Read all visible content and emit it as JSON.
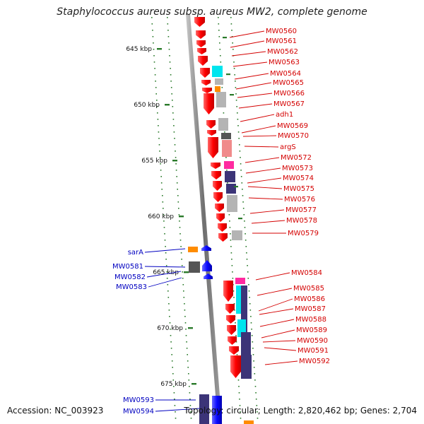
{
  "title": "Staphylococcus aureus subsp. aureus MW2, complete genome",
  "accession": "Accession: NC_003923",
  "topology": "Topology: circular; Length: 2,820,462 bp; Genes: 2,704",
  "colors": {
    "forward_label": "#d40000",
    "reverse_label": "#0000c0",
    "forward_gene": "#ff0000",
    "reverse_gene": "#1010ff",
    "backbone": "#808080",
    "ruler_dots": "#2a7a2a",
    "cyan": "#00e5ee",
    "magenta": "#ff2aa0",
    "orange": "#ff8c00",
    "navy": "#3c3478",
    "gray": "#b4b4b4",
    "dark_gray": "#555555",
    "pink": "#f08a8a"
  },
  "ruler": {
    "ticks": [
      {
        "label": "645 kbp"
      },
      {
        "label": "650 kbp"
      },
      {
        "label": "655 kbp"
      },
      {
        "label": "660 kbp"
      },
      {
        "label": "665 kbp"
      },
      {
        "label": "670 kbp"
      },
      {
        "label": "675 kbp"
      }
    ]
  },
  "forward_genes": [
    {
      "label": "MW0560"
    },
    {
      "label": "MW0561"
    },
    {
      "label": "MW0562"
    },
    {
      "label": "MW0563"
    },
    {
      "label": "MW0564"
    },
    {
      "label": "MW0565"
    },
    {
      "label": "MW0566"
    },
    {
      "label": "MW0567"
    },
    {
      "label": "adh1"
    },
    {
      "label": "MW0569"
    },
    {
      "label": "MW0570"
    },
    {
      "label": "argS"
    },
    {
      "label": "MW0572"
    },
    {
      "label": "MW0573"
    },
    {
      "label": "MW0574"
    },
    {
      "label": "MW0575"
    },
    {
      "label": "MW0576"
    },
    {
      "label": "MW0577"
    },
    {
      "label": "MW0578"
    },
    {
      "label": "MW0579"
    },
    {
      "label": "MW0584"
    },
    {
      "label": "MW0585"
    },
    {
      "label": "MW0586"
    },
    {
      "label": "MW0587"
    },
    {
      "label": "MW0588"
    },
    {
      "label": "MW0589"
    },
    {
      "label": "MW0590"
    },
    {
      "label": "MW0591"
    },
    {
      "label": "MW0592"
    }
  ],
  "reverse_genes": [
    {
      "label": "sarA"
    },
    {
      "label": "MW0581"
    },
    {
      "label": "MW0582"
    },
    {
      "label": "MW0583"
    },
    {
      "label": "MW0593"
    },
    {
      "label": "MW0594"
    }
  ]
}
